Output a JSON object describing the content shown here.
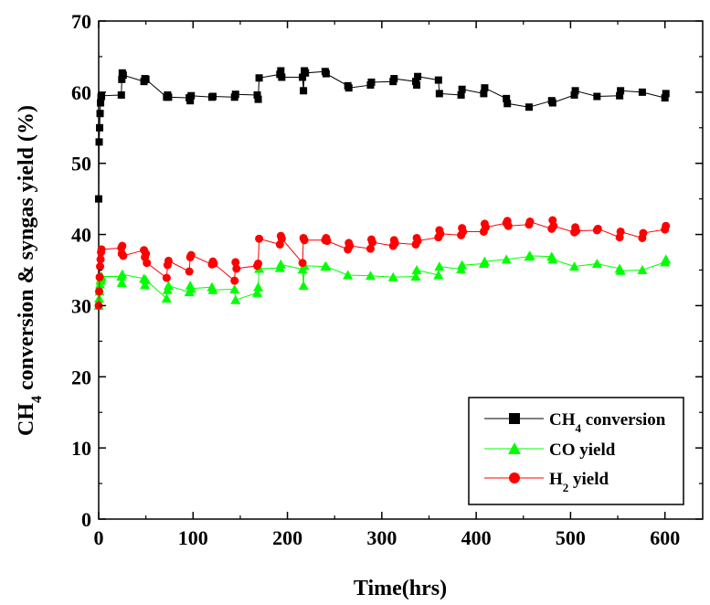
{
  "chart_data": {
    "type": "line",
    "xlabel": "Time(hrs)",
    "ylabel": {
      "pre": "CH",
      "sub": "4",
      "post": " conversion & syngas yield (%)"
    },
    "xlim": [
      0,
      640
    ],
    "ylim": [
      0,
      70
    ],
    "xticks": [
      0,
      100,
      200,
      300,
      400,
      500,
      600
    ],
    "yticks": [
      0,
      10,
      20,
      30,
      40,
      50,
      60,
      70
    ],
    "grid": false,
    "legend_position": "bottom-right",
    "series": [
      {
        "name": {
          "pre": "CH",
          "sub": "4",
          "post": " conversion"
        },
        "color": "#000000",
        "marker": "square",
        "x": [
          0,
          0.5,
          1,
          1.5,
          2,
          2.5,
          3,
          24,
          24.5,
          25,
          26,
          48,
          49,
          50,
          72,
          73,
          74,
          96,
          97,
          98,
          120,
          121,
          144,
          145,
          168,
          169,
          170,
          192,
          193,
          194,
          216,
          217,
          218,
          219,
          240,
          241,
          264,
          265,
          288,
          289,
          312,
          313,
          336,
          337,
          338,
          360,
          361,
          384,
          385,
          408,
          409,
          432,
          433,
          456,
          480,
          481,
          504,
          505,
          528,
          552,
          553,
          576,
          600,
          601
        ],
        "y": [
          45,
          53,
          55,
          57,
          58.5,
          59.3,
          59.5,
          59.6,
          61.8,
          62.7,
          62.4,
          61.5,
          61.9,
          61.8,
          59.3,
          59.6,
          59.3,
          59.2,
          58.8,
          59.5,
          59.3,
          59.4,
          59.3,
          59.7,
          59.6,
          59.0,
          62.0,
          62.5,
          63.0,
          62.1,
          62.1,
          60.2,
          63.0,
          62.7,
          62.9,
          62.6,
          60.9,
          60.6,
          61.0,
          61.4,
          61.5,
          61.9,
          61.5,
          61.0,
          62.2,
          61.7,
          59.8,
          59.6,
          60.4,
          59.8,
          60.6,
          59.1,
          58.4,
          57.9,
          58.8,
          58.5,
          59.6,
          60.2,
          59.4,
          59.5,
          60.2,
          60.0,
          59.2,
          59.8
        ]
      },
      {
        "name": {
          "pre": "CO yield",
          "sub": "",
          "post": ""
        },
        "color": "#00ff00",
        "marker": "triangle",
        "x": [
          0,
          0.5,
          1,
          1.5,
          2,
          2.5,
          3,
          24,
          24.5,
          25,
          48,
          49,
          50,
          72,
          73,
          74,
          96,
          97,
          98,
          120,
          121,
          144,
          145,
          168,
          169,
          170,
          192,
          193,
          216,
          217,
          218,
          240,
          241,
          264,
          288,
          312,
          336,
          337,
          360,
          361,
          384,
          385,
          408,
          409,
          432,
          456,
          457,
          480,
          481,
          504,
          528,
          552,
          553,
          576,
          600,
          601
        ],
        "y": [
          30,
          31,
          32,
          33,
          33.5,
          33.8,
          34.1,
          34.1,
          33.2,
          34.4,
          33.8,
          32.9,
          33.6,
          31.0,
          32.2,
          32.8,
          31.9,
          32.8,
          32.4,
          32.6,
          32.2,
          32.3,
          30.8,
          31.8,
          32.6,
          35.2,
          35.3,
          35.8,
          35.1,
          32.8,
          35.6,
          35.5,
          35.5,
          34.3,
          34.2,
          34.0,
          34.1,
          35.0,
          34.3,
          35.5,
          35.1,
          35.7,
          35.9,
          36.2,
          36.5,
          36.9,
          37.0,
          36.9,
          36.5,
          35.5,
          35.9,
          35.2,
          34.9,
          35.0,
          36.1,
          36.5
        ]
      },
      {
        "name": {
          "pre": "H",
          "sub": "2",
          "post": " yield"
        },
        "color": "#ff0000",
        "marker": "circle",
        "x": [
          0,
          0.5,
          1,
          1.5,
          2,
          2.5,
          3,
          24,
          24.5,
          25,
          26,
          48,
          49,
          50,
          51,
          72,
          73,
          74,
          96,
          97,
          98,
          120,
          121,
          122,
          144,
          145,
          146,
          168,
          169,
          170,
          192,
          193,
          194,
          216,
          217,
          218,
          240,
          241,
          242,
          264,
          265,
          266,
          288,
          289,
          290,
          312,
          313,
          314,
          336,
          337,
          338,
          360,
          361,
          362,
          384,
          385,
          386,
          408,
          409,
          410,
          432,
          433,
          434,
          456,
          457,
          480,
          481,
          482,
          504,
          505,
          506,
          528,
          529,
          552,
          553,
          576,
          577,
          600,
          601
        ],
        "y": [
          30,
          32,
          34,
          35.5,
          36.5,
          37.5,
          37.9,
          38.1,
          37.3,
          38.4,
          37.0,
          37.8,
          36.8,
          37.3,
          36.0,
          33.9,
          35.7,
          36.3,
          34.8,
          36.8,
          37.1,
          35.8,
          36.2,
          35.9,
          33.5,
          36.1,
          35.2,
          35.6,
          35.9,
          39.4,
          38.6,
          39.8,
          39.4,
          36.0,
          39.5,
          39.2,
          39.2,
          39.5,
          39.1,
          37.9,
          38.8,
          38.4,
          38.0,
          39.3,
          38.9,
          38.4,
          39.2,
          38.8,
          38.6,
          39.5,
          39.1,
          39.6,
          40.6,
          40.1,
          39.9,
          40.9,
          40.4,
          40.4,
          41.5,
          41.0,
          41.6,
          41.9,
          41.2,
          41.4,
          41.8,
          40.8,
          42.0,
          41.2,
          40.3,
          41.0,
          40.5,
          40.6,
          40.8,
          39.6,
          40.4,
          39.5,
          40.2,
          40.7,
          41.2
        ]
      }
    ]
  }
}
